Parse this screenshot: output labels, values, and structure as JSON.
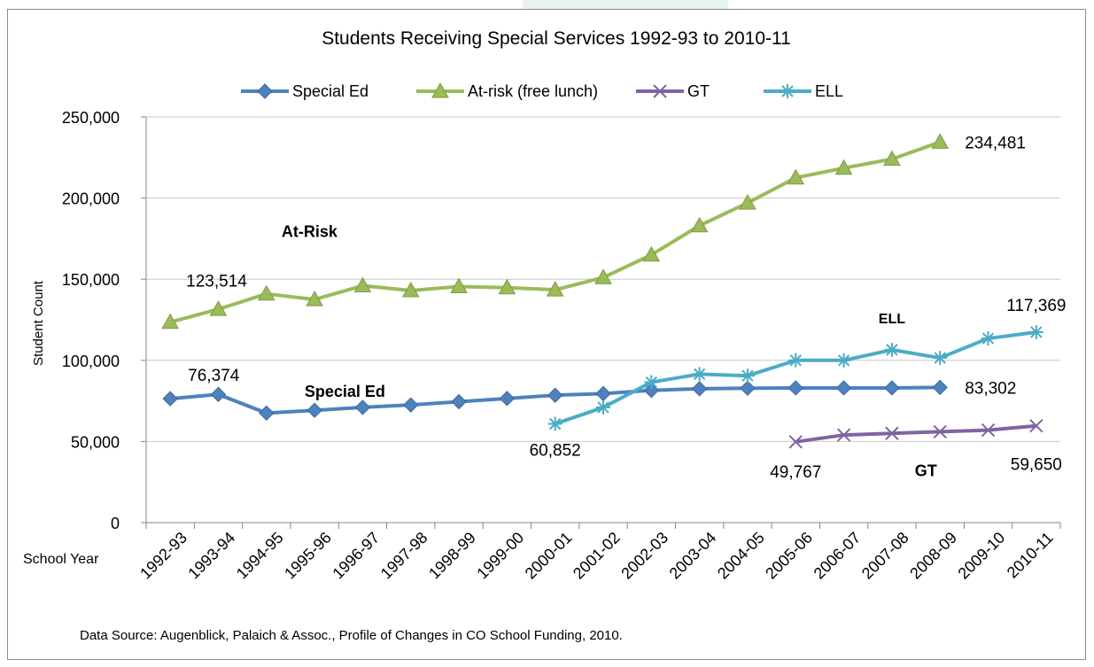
{
  "chart_data": {
    "type": "line",
    "title": "Students Receiving Special Services 1992-93 to 2010-11",
    "xlabel": "School Year",
    "ylabel": "Student Count",
    "ylim": [
      0,
      250000
    ],
    "yticks": [
      0,
      50000,
      100000,
      150000,
      200000,
      250000
    ],
    "ytick_labels": [
      "0",
      "50,000",
      "100,000",
      "150,000",
      "200,000",
      "250,000"
    ],
    "categories": [
      "1992-93",
      "1993-94",
      "1994-95",
      "1995-96",
      "1996-97",
      "1997-98",
      "1998-99",
      "1999-00",
      "2000-01",
      "2001-02",
      "2002-03",
      "2003-04",
      "2004-05",
      "2005-06",
      "2006-07",
      "2007-08",
      "2008-09",
      "2009-10",
      "2010-11"
    ],
    "grid": "horizontal",
    "legend_position": "top",
    "series": [
      {
        "name": "Special Ed",
        "color": "#4f81bd",
        "marker": "diamond",
        "values": [
          76374,
          79000,
          67500,
          69200,
          71000,
          72500,
          74500,
          76500,
          78500,
          79500,
          81500,
          82500,
          82800,
          83000,
          83000,
          83000,
          83302,
          null,
          null
        ]
      },
      {
        "name": "At-risk (free lunch)",
        "color": "#9bbb59",
        "marker": "triangle",
        "values": [
          123514,
          131500,
          141000,
          137500,
          146000,
          143000,
          145500,
          144800,
          143500,
          151000,
          165000,
          183000,
          197000,
          212500,
          218500,
          224000,
          234481,
          null,
          null
        ]
      },
      {
        "name": "GT",
        "color": "#8064a2",
        "marker": "x",
        "values": [
          null,
          null,
          null,
          null,
          null,
          null,
          null,
          null,
          null,
          null,
          null,
          null,
          null,
          49767,
          54000,
          55000,
          56000,
          57000,
          59650
        ]
      },
      {
        "name": "ELL",
        "color": "#4bacc6",
        "marker": "star",
        "values": [
          null,
          null,
          null,
          null,
          null,
          null,
          null,
          null,
          60852,
          71000,
          86500,
          91500,
          90500,
          100000,
          100000,
          106500,
          101500,
          113500,
          117369
        ]
      }
    ],
    "annotations": [
      {
        "text": "123,514",
        "series": 1,
        "index": 0,
        "dx": 18,
        "dy": -40
      },
      {
        "text": "234,481",
        "series": 1,
        "index": 16,
        "dx": 28,
        "dy": 7
      },
      {
        "text": "76,374",
        "series": 0,
        "index": 0,
        "dx": 20,
        "dy": -20
      },
      {
        "text": "83,302",
        "series": 0,
        "index": 16,
        "dx": 28,
        "dy": 7
      },
      {
        "text": "60,852",
        "series": 3,
        "index": 8,
        "dx": 0,
        "dy": 36
      },
      {
        "text": "117,369",
        "series": 3,
        "index": 18,
        "dx": 0,
        "dy": -24
      },
      {
        "text": "49,767",
        "series": 2,
        "index": 13,
        "dx": 0,
        "dy": 40
      },
      {
        "text": "59,650",
        "series": 2,
        "index": 18,
        "dx": 0,
        "dy": 50
      }
    ],
    "series_labels": [
      {
        "text": "At-Risk",
        "series": 1,
        "index": 4,
        "dx": -60,
        "dy": -55,
        "size": "normal"
      },
      {
        "text": "Special Ed",
        "series": 0,
        "index": 4,
        "dx": -20,
        "dy": -12,
        "size": "normal"
      },
      {
        "text": "ELL",
        "series": 3,
        "index": 15,
        "dx": 0,
        "dy": -30,
        "size": "small"
      },
      {
        "text": "GT",
        "series": 2,
        "index": 16,
        "dx": -16,
        "dy": 50,
        "size": "normal"
      }
    ]
  },
  "footer": {
    "source": "Data Source: Augenblick, Palaich & Assoc., Profile of Changes in CO School Funding, 2010."
  }
}
